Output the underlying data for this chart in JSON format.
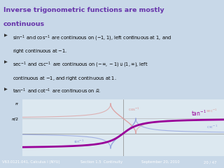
{
  "title_line1": "Inverse trigonometric functions are mostly",
  "title_line2": "continuous",
  "title_color": "#6633aa",
  "title_bg": "#b0c8e0",
  "bullet_bg": "#c8d8e8",
  "plot_bg": "#dce8f0",
  "bullets": [
    [
      "sin^{-1} and cos^{-1} are continuous on (-1,1), left continuous at 1, and",
      "right continuous at -1."
    ],
    [
      "sec^{-1} and csc^{-1} are continuous on (-\\infty,-1)\\cup(1,\\infty), left",
      "continuous at -1, and right continuous at 1."
    ],
    [
      "tan^{-1} and cot^{-1} are continuous on \\mathbb{R}."
    ]
  ],
  "xmin": -8,
  "xmax": 8,
  "ymin": -2.4,
  "ymax": 3.6,
  "pi": 3.14159265358979,
  "colors": {
    "sin": "#8899dd",
    "cos": "#dd9999",
    "tan": "#990099",
    "sec": "#dd9999",
    "csc": "#8899dd"
  },
  "footer_bg": "#5599cc",
  "footer_left": "V63.0121.041, Calculus I (NYU)",
  "footer_mid": "Section 1.5  Continuity",
  "footer_date": "September 20, 2010",
  "footer_page": "20 / 47"
}
